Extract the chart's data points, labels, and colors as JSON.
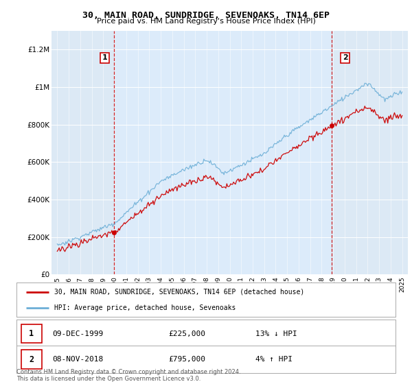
{
  "title": "30, MAIN ROAD, SUNDRIDGE, SEVENOAKS, TN14 6EP",
  "subtitle": "Price paid vs. HM Land Registry's House Price Index (HPI)",
  "legend_line1": "30, MAIN ROAD, SUNDRIDGE, SEVENOAKS, TN14 6EP (detached house)",
  "legend_line2": "HPI: Average price, detached house, Sevenoaks",
  "footer": "Contains HM Land Registry data © Crown copyright and database right 2024.\nThis data is licensed under the Open Government Licence v3.0.",
  "annotation1_label": "1",
  "annotation1_date": "09-DEC-1999",
  "annotation1_price": "£225,000",
  "annotation1_hpi": "13% ↓ HPI",
  "annotation2_label": "2",
  "annotation2_date": "08-NOV-2018",
  "annotation2_price": "£795,000",
  "annotation2_hpi": "4% ↑ HPI",
  "price_color": "#cc0000",
  "hpi_color": "#6baed6",
  "shade_color": "#dceeff",
  "ylim": [
    0,
    1300000
  ],
  "yticks": [
    0,
    200000,
    400000,
    600000,
    800000,
    1000000,
    1200000
  ],
  "ytick_labels": [
    "£0",
    "£200K",
    "£400K",
    "£600K",
    "£800K",
    "£1M",
    "£1.2M"
  ],
  "sale1_year": 1999.92,
  "sale1_price": 225000,
  "sale2_year": 2018.85,
  "sale2_price": 795000,
  "background_color": "#dce9f5"
}
